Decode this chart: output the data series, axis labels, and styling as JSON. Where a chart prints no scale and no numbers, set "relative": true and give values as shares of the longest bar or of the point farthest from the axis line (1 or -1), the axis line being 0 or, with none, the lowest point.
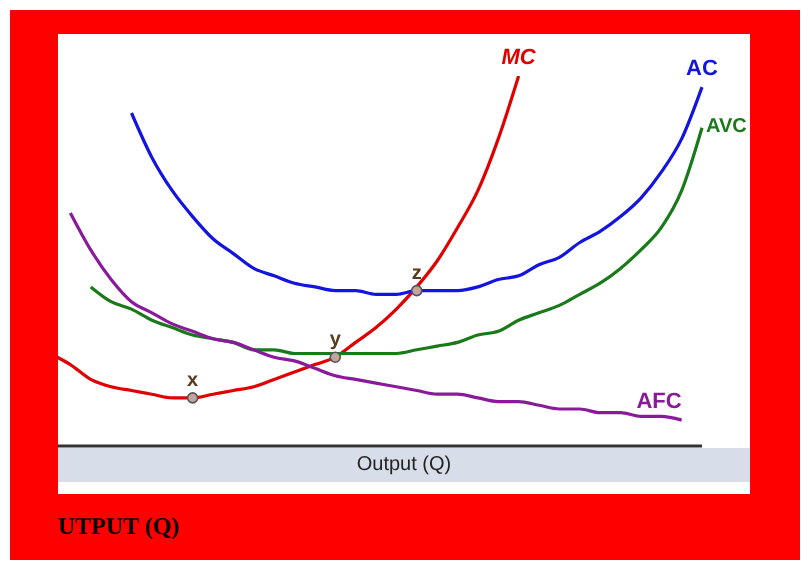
{
  "chart_data": {
    "type": "line",
    "relative": true,
    "xlabel": "Output (Q)",
    "marker": "none",
    "categories": [
      null,
      null,
      null,
      null,
      null,
      null,
      null,
      null,
      null,
      null,
      null,
      null,
      null,
      null,
      null,
      null,
      null,
      null,
      null,
      null,
      null,
      null,
      null,
      null,
      null,
      null,
      null,
      null,
      null,
      null,
      null,
      null,
      null
    ],
    "series": [
      {
        "name": "MC",
        "color": "#e00000",
        "values": [
          0.25,
          0.22,
          0.18,
          0.16,
          0.15,
          0.14,
          0.13,
          0.13,
          0.14,
          0.15,
          0.16,
          0.18,
          0.2,
          0.22,
          0.24,
          0.28,
          0.32,
          0.37,
          0.43,
          0.5,
          0.59,
          0.69,
          0.83,
          1,
          null,
          null,
          null,
          null,
          null,
          null,
          null,
          null,
          null
        ]
      },
      {
        "name": "AC",
        "color": "#1414e0",
        "values": [
          null,
          null,
          null,
          null,
          0.9,
          0.78,
          0.69,
          0.62,
          0.56,
          0.52,
          0.48,
          0.46,
          0.44,
          0.43,
          0.42,
          0.42,
          0.41,
          0.41,
          0.42,
          0.42,
          0.42,
          0.43,
          0.45,
          0.46,
          0.49,
          0.51,
          0.55,
          0.58,
          0.62,
          0.67,
          0.74,
          0.83,
          0.97
        ]
      },
      {
        "name": "AVC",
        "color": "#1a7a1a",
        "values": [
          null,
          null,
          0.43,
          0.39,
          0.37,
          0.34,
          0.32,
          0.3,
          0.29,
          0.28,
          0.26,
          0.26,
          0.25,
          0.25,
          0.25,
          0.25,
          0.25,
          0.25,
          0.26,
          0.27,
          0.28,
          0.3,
          0.31,
          0.34,
          0.36,
          0.38,
          0.41,
          0.44,
          0.48,
          0.53,
          0.59,
          0.69,
          0.86
        ]
      },
      {
        "name": "AFC",
        "color": "#8b1a9b",
        "values": [
          null,
          0.63,
          0.53,
          0.45,
          0.39,
          0.36,
          0.33,
          0.31,
          0.29,
          0.28,
          0.26,
          0.24,
          0.23,
          0.21,
          0.19,
          0.18,
          0.17,
          0.16,
          0.15,
          0.14,
          0.14,
          0.13,
          0.12,
          0.12,
          0.11,
          0.1,
          0.1,
          0.09,
          0.09,
          0.08,
          0.08,
          0.07,
          null
        ]
      }
    ],
    "annotations": [
      {
        "text": "x",
        "y": 0.13
      },
      {
        "text": "y",
        "y": 0.24
      },
      {
        "text": "z",
        "y": 0.42
      },
      "UTPUT (Q)"
    ]
  }
}
